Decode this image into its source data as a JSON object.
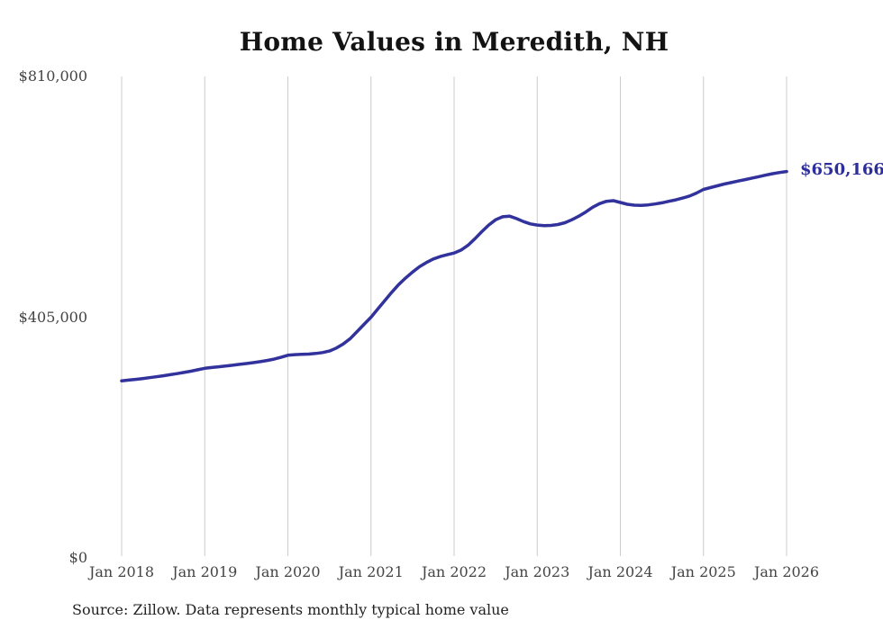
{
  "chart_data": {
    "type": "line",
    "title": "Home Values in Meredith, NH",
    "series_name": "Monthly typical home value",
    "x_start": "Jan 2018",
    "x_end": "Jan 2026",
    "frequency": "monthly",
    "values": [
      298000,
      299200,
      300400,
      301800,
      303200,
      304800,
      306500,
      308300,
      310100,
      312000,
      314200,
      316600,
      319000,
      320300,
      321600,
      322900,
      324200,
      325600,
      327000,
      328500,
      330200,
      332200,
      334500,
      337500,
      341000,
      342000,
      342500,
      343000,
      344000,
      345500,
      348000,
      353000,
      360000,
      369000,
      381000,
      393000,
      405000,
      419000,
      433000,
      447000,
      460000,
      471000,
      481000,
      490000,
      497000,
      503000,
      507000,
      510000,
      513000,
      518000,
      526000,
      537000,
      549000,
      560000,
      569000,
      574000,
      575000,
      571000,
      566000,
      562000,
      560000,
      559000,
      559500,
      561000,
      564000,
      569000,
      575000,
      582000,
      590000,
      596000,
      600000,
      601000,
      598000,
      595000,
      593500,
      593000,
      594000,
      595500,
      597500,
      600000,
      602500,
      605500,
      609000,
      614000,
      620000,
      623000,
      626000,
      629000,
      631500,
      634000,
      636500,
      639000,
      641500,
      644000,
      646500,
      648500,
      650166
    ],
    "end_label": "$650,166",
    "end_value": 650166,
    "ylim": [
      0,
      810000
    ],
    "y_ticks": [
      {
        "label": "$0",
        "value": 0
      },
      {
        "label": "$405,000",
        "value": 405000
      },
      {
        "label": "$810,000",
        "value": 810000
      }
    ],
    "x_tick_labels": [
      "Jan 2018",
      "Jan 2019",
      "Jan 2020",
      "Jan 2021",
      "Jan 2022",
      "Jan 2023",
      "Jan 2024",
      "Jan 2025",
      "Jan 2026"
    ],
    "grid": "vertical-only",
    "legend": "none",
    "line_color": "#32329c",
    "end_label_color": "#2d2d9d",
    "grid_color": "#cccccc",
    "tick_label_color": "#444444"
  },
  "footer": {
    "source_text": "Source: Zillow. Data represents monthly typical home value"
  }
}
